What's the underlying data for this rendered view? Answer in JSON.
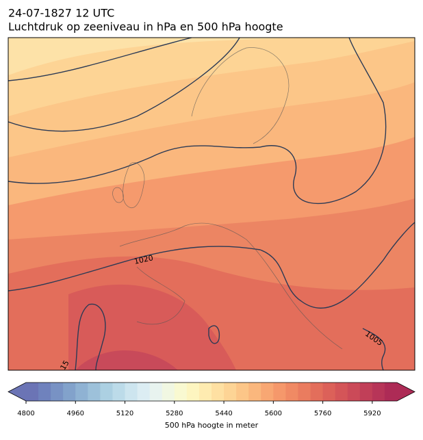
{
  "header": {
    "title": "24-07-1827 12 UTC",
    "subtitle": "Luchtdruk op zeeniveau in hPa en 500 hPa hoogte"
  },
  "map": {
    "contour_labels": [
      "1020",
      "1005",
      "15"
    ]
  },
  "colorbar": {
    "lim": [
      4800,
      6000
    ],
    "ticks": [
      4800,
      4960,
      5120,
      5280,
      5440,
      5600,
      5760,
      5920
    ],
    "label": "500 hPa hoogte in meter",
    "colors": [
      "#6b74b5",
      "#6f82bd",
      "#7892c4",
      "#82a2cb",
      "#8fb2d3",
      "#9dc1da",
      "#acd0e2",
      "#bcdbe9",
      "#cde5ef",
      "#dcedf3",
      "#e8f3ef",
      "#f1f7e2",
      "#f9f9d1",
      "#fdf5c0",
      "#feebb0",
      "#fee0a2",
      "#fdd495",
      "#fcc688",
      "#fab77d",
      "#f8a773",
      "#f5986b",
      "#f08a64",
      "#ea7c5f",
      "#e36e5b",
      "#dc6159",
      "#d45558",
      "#cb4a58",
      "#c13f58",
      "#b73558",
      "#ad2b56"
    ]
  }
}
